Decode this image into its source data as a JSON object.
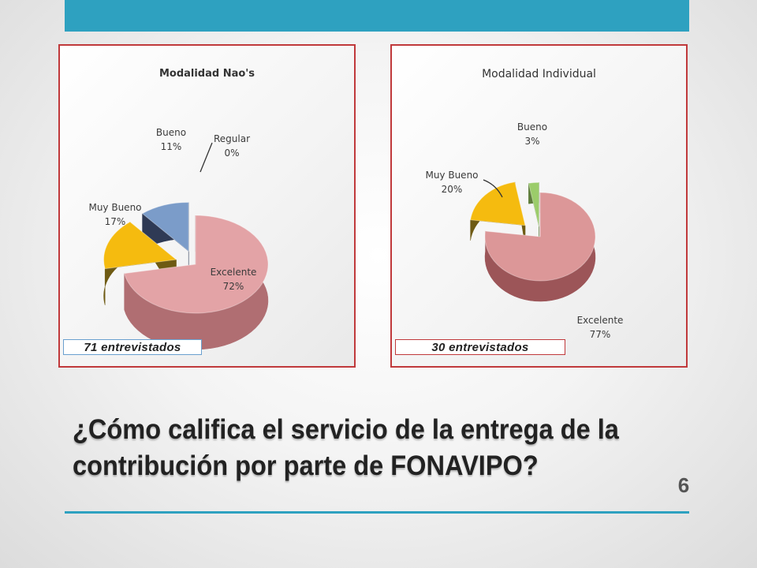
{
  "slide": {
    "question": "¿Cómo califica el servicio de la entrega de la contribución por parte de FONAVIPO?",
    "page_number": "6",
    "accent_color": "#2ea1c0"
  },
  "chart_data": [
    {
      "type": "pie",
      "title": "Modalidad Nao's",
      "note": "71 entrevistados",
      "slices": [
        {
          "label": "Excelente",
          "value": 72,
          "value_label": "72%",
          "color": "#e3a3a6",
          "dark": "#b06e72"
        },
        {
          "label": "Muy Bueno",
          "value": 17,
          "value_label": "17%",
          "color": "#f5bb0f",
          "dark": "#6e5a13"
        },
        {
          "label": "Bueno",
          "value": 11,
          "value_label": "11%",
          "color": "#7b9cc9",
          "dark": "#2f3a55"
        },
        {
          "label": "Regular",
          "value": 0,
          "value_label": "0%",
          "color": "#9bbb59",
          "dark": "#5e7530"
        }
      ]
    },
    {
      "type": "pie",
      "title": "Modalidad Individual",
      "note": "30 entrevistados",
      "slices": [
        {
          "label": "Excelente",
          "value": 77,
          "value_label": "77%",
          "color": "#dc9798",
          "dark": "#9c5558"
        },
        {
          "label": "Muy Bueno",
          "value": 20,
          "value_label": "20%",
          "color": "#f5bb0f",
          "dark": "#6e5a13"
        },
        {
          "label": "Bueno",
          "value": 3,
          "value_label": "3%",
          "color": "#9bcc6a",
          "dark": "#5e7d3a"
        }
      ]
    }
  ]
}
